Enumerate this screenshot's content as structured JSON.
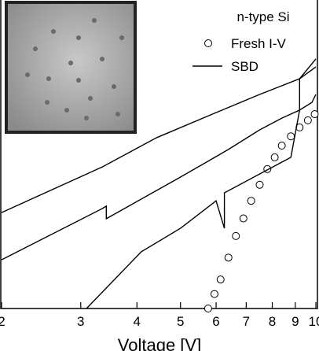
{
  "chart_data": {
    "type": "line",
    "x_label": "Voltage [V]",
    "legend_title": "n-type Si",
    "xscale": "log",
    "xlim": [
      2,
      10
    ],
    "ylim": [
      0,
      10
    ],
    "xticks": [
      2,
      3,
      4,
      5,
      6,
      7,
      8,
      9,
      {
        "value": 10,
        "label": "10"
      }
    ],
    "series": [
      {
        "name": "Fresh I-V",
        "color": "#000",
        "marker": "circle",
        "x": [
          5.76,
          5.95,
          6.14,
          6.39,
          6.64,
          6.9,
          7.18,
          7.5,
          7.8,
          8.1,
          8.4,
          8.8,
          9.2,
          9.6,
          9.94
        ],
        "values": [
          0,
          0.47,
          0.94,
          1.65,
          2.35,
          2.92,
          3.49,
          4.01,
          4.52,
          4.9,
          5.28,
          5.58,
          5.87,
          6.1,
          6.3
        ]
      },
      {
        "name": "SBD",
        "color": "#000",
        "marker": "line",
        "lines": [
          {
            "x": [
              2,
              3.35,
              4.43,
              5.89,
              7.5,
              9.2,
              10
            ],
            "values": [
              3.11,
              4.59,
              5.54,
              6.3,
              6.94,
              7.45,
              8.09
            ]
          },
          {
            "x": [
              2,
              3.35,
              3.42,
              3.42,
              5.0,
              6.38,
              7.5,
              8.4,
              9.2,
              9.2,
              10
            ],
            "values": [
              1.58,
              3.24,
              3.32,
              2.91,
              4.26,
              5.15,
              5.79,
              6.17,
              6.43,
              7.45,
              7.83
            ]
          },
          {
            "x": [
              3.09,
              4.09,
              5.0,
              6.0,
              6.26,
              6.26,
              8.8,
              9.2,
              9.8,
              10
            ],
            "values": [
              0,
              1.84,
              2.6,
              3.49,
              2.6,
              3.75,
              4.9,
              6.43,
              6.68,
              6.94
            ]
          }
        ]
      }
    ]
  }
}
